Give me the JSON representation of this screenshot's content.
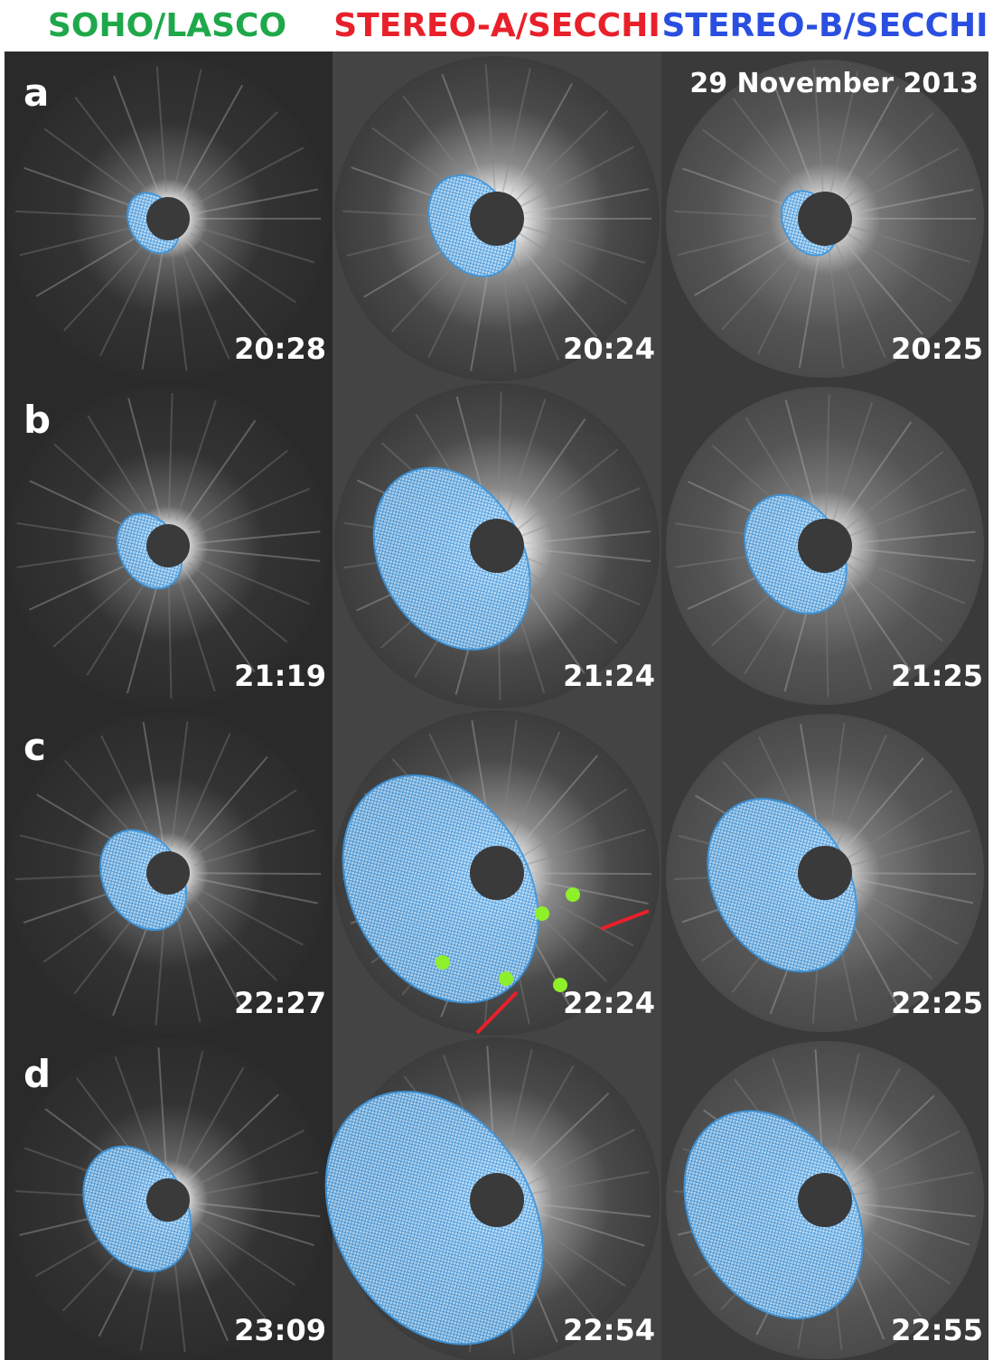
{
  "headers": [
    "SOHO/LASCO",
    "STEREO-A/SECCHI",
    "STEREO-B/SECCHI"
  ],
  "date": "29 November 2013",
  "rows": [
    {
      "label": "a",
      "times": [
        "20:28",
        "20:24",
        "20:25"
      ]
    },
    {
      "label": "b",
      "times": [
        "21:19",
        "21:24",
        "21:25"
      ]
    },
    {
      "label": "c",
      "times": [
        "22:27",
        "22:24",
        "22:25"
      ]
    },
    {
      "label": "d",
      "times": [
        "23:09",
        "22:54",
        "22:55"
      ]
    }
  ]
}
